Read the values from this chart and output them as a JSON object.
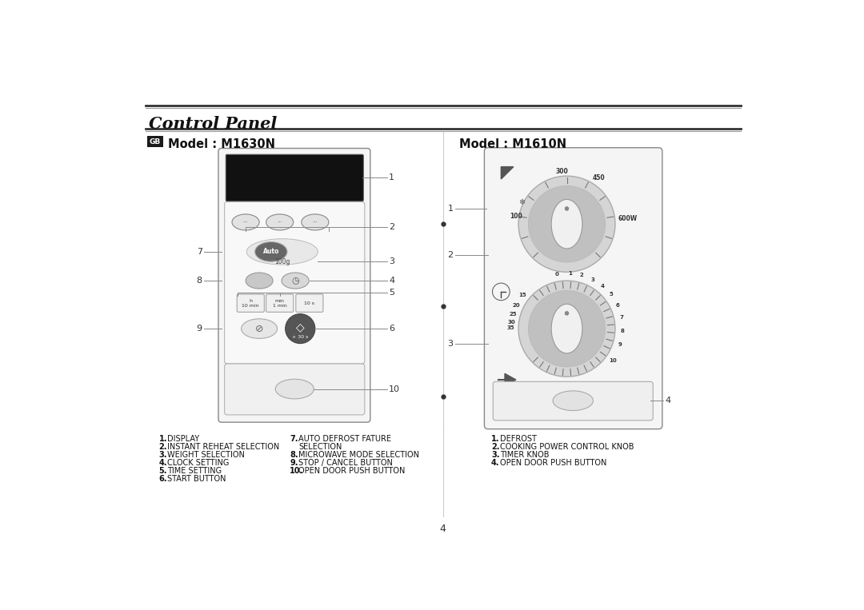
{
  "title": "Control Panel",
  "bg_color": "#ffffff",
  "left_model": "Model : M1630N",
  "right_model": "Model : M1610N",
  "left_labels_col1": [
    {
      "n": "1.",
      "text": "DISPLAY"
    },
    {
      "n": "2.",
      "text": "INSTANT REHEAT SELECTION"
    },
    {
      "n": "3.",
      "text": "WEIGHT SELECTION"
    },
    {
      "n": "4.",
      "text": "CLOCK SETTING"
    },
    {
      "n": "5.",
      "text": "TIME SETTING"
    },
    {
      "n": "6.",
      "text": "START BUTTON"
    }
  ],
  "left_labels_col2_line1": {
    "n": "7.",
    "text": "AUTO DEFROST FATURE"
  },
  "left_labels_col2_line2": {
    "n": "",
    "text": "SELECTION"
  },
  "left_labels_col2_rest": [
    {
      "n": "8.",
      "text": "MICROWAVE MODE SELECTION"
    },
    {
      "n": "9.",
      "text": "STOP / CANCEL BUTTON"
    },
    {
      "n": "10.",
      "text": "OPEN DOOR PUSH BUTTON"
    }
  ],
  "right_labels": [
    {
      "n": "1.",
      "text": "DEFROST"
    },
    {
      "n": "2.",
      "text": "COOKING POWER CONTROL KNOB"
    },
    {
      "n": "3.",
      "text": "TIMER KNOB"
    },
    {
      "n": "4.",
      "text": "OPEN DOOR PUSH BUTTON"
    }
  ],
  "page_number": "4",
  "gb_box_color": "#1a1a1a",
  "gb_text_color": "#ffffff",
  "panel_edge": "#777777",
  "panel_face": "#f8f8f8",
  "dark_btn": "#555555",
  "light_btn": "#e0e0e0",
  "mid_btn": "#c8c8c8",
  "knob_outer": "#cccccc",
  "knob_mid": "#b0b0b0",
  "knob_inner_face": "#e8e8e8",
  "label_color": "#111111",
  "line_dark": "#333333",
  "line_mid": "#888888",
  "arrow_color": "#666666",
  "tick_color": "#666666"
}
